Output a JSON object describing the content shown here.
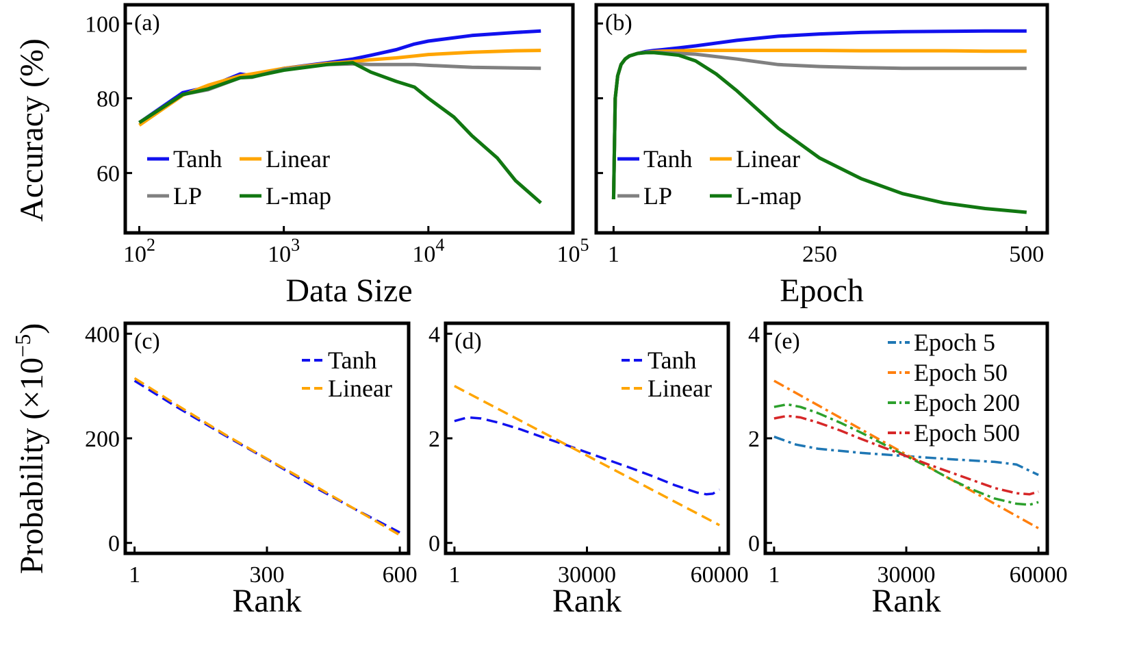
{
  "chart_data": [
    {
      "panel": "(a)",
      "type": "line",
      "xscale": "log",
      "xlim": [
        80,
        100000
      ],
      "ylim": [
        44,
        105
      ],
      "xlabel": "Data Size",
      "ylabel": "Accuracy (%)",
      "xticks": [
        {
          "v": 100,
          "b": "10",
          "e": "2"
        },
        {
          "v": 1000,
          "b": "10",
          "e": "3"
        },
        {
          "v": 10000,
          "b": "10",
          "e": "4"
        },
        {
          "v": 100000,
          "b": "10",
          "e": "5"
        }
      ],
      "yticks": [
        {
          "v": 60,
          "t": "60"
        },
        {
          "v": 80,
          "t": "80"
        },
        {
          "v": 100,
          "t": "100"
        }
      ],
      "legend": {
        "placement": "lower-left",
        "columns": 2
      },
      "series": [
        {
          "name": "Tanh",
          "color": "#1111ee",
          "dash": "solid",
          "x": [
            100,
            200,
            300,
            500,
            600,
            1000,
            2000,
            3000,
            4000,
            6000,
            8000,
            10000,
            20000,
            40000,
            60000
          ],
          "y": [
            73.5,
            81.5,
            83.0,
            86.5,
            86.0,
            88.0,
            89.5,
            90.5,
            91.5,
            93.0,
            94.5,
            95.3,
            96.8,
            97.6,
            98.0
          ]
        },
        {
          "name": "Linear",
          "color": "#ffa500",
          "dash": "solid",
          "x": [
            100,
            200,
            300,
            500,
            600,
            1000,
            2000,
            3000,
            4000,
            6000,
            8000,
            10000,
            20000,
            40000,
            60000
          ],
          "y": [
            72.8,
            80.8,
            83.5,
            86.0,
            86.5,
            88.0,
            89.3,
            89.8,
            90.3,
            90.8,
            91.3,
            91.7,
            92.3,
            92.7,
            92.8
          ]
        },
        {
          "name": "LP",
          "color": "#808080",
          "dash": "solid",
          "x": [
            100,
            200,
            300,
            500,
            600,
            1000,
            2000,
            3000,
            4000,
            6000,
            8000,
            10000,
            20000,
            40000,
            60000
          ],
          "y": [
            73.5,
            81.0,
            82.3,
            85.5,
            85.6,
            87.8,
            89.0,
            89.2,
            89.0,
            89.0,
            89.0,
            88.8,
            88.3,
            88.1,
            88.0
          ]
        },
        {
          "name": "L-map",
          "color": "#117711",
          "dash": "solid",
          "x": [
            100,
            200,
            300,
            500,
            600,
            1000,
            2000,
            3000,
            4000,
            6000,
            8000,
            10000,
            15000,
            20000,
            30000,
            40000,
            60000
          ],
          "y": [
            73.5,
            81.0,
            82.5,
            85.5,
            85.7,
            87.5,
            89.0,
            89.5,
            87.0,
            84.5,
            83.0,
            80.0,
            75.0,
            70.0,
            64.0,
            58.0,
            52.0
          ]
        }
      ]
    },
    {
      "panel": "(b)",
      "type": "line",
      "xlim": [
        -20,
        525
      ],
      "ylim": [
        44,
        105
      ],
      "xlabel": "Epoch",
      "ylabel": "",
      "xticks": [
        {
          "v": 1,
          "t": "1"
        },
        {
          "v": 250,
          "t": "250"
        },
        {
          "v": 500,
          "t": "500"
        }
      ],
      "yticks": [
        {
          "v": 60,
          "t": ""
        },
        {
          "v": 80,
          "t": ""
        },
        {
          "v": 100,
          "t": ""
        }
      ],
      "legend": {
        "placement": "lower-left",
        "columns": 2
      },
      "series": [
        {
          "name": "Tanh",
          "color": "#1111ee",
          "dash": "solid",
          "x": [
            1,
            3,
            6,
            10,
            15,
            20,
            30,
            40,
            50,
            60,
            80,
            100,
            150,
            200,
            250,
            300,
            350,
            400,
            450,
            500
          ],
          "y": [
            53,
            80,
            86,
            89,
            90.5,
            91.3,
            92.0,
            92.5,
            92.8,
            93.0,
            93.5,
            94.0,
            95.5,
            96.6,
            97.2,
            97.6,
            97.8,
            97.9,
            98.0,
            98.0
          ]
        },
        {
          "name": "Linear",
          "color": "#ffa500",
          "dash": "solid",
          "x": [
            1,
            3,
            6,
            10,
            15,
            20,
            30,
            40,
            50,
            60,
            80,
            100,
            150,
            200,
            250,
            300,
            350,
            400,
            450,
            500
          ],
          "y": [
            53,
            80,
            86,
            89,
            90.5,
            91.3,
            92.0,
            92.3,
            92.5,
            92.6,
            92.7,
            92.8,
            92.8,
            92.8,
            92.8,
            92.7,
            92.7,
            92.7,
            92.6,
            92.6
          ]
        },
        {
          "name": "LP",
          "color": "#808080",
          "dash": "solid",
          "x": [
            1,
            3,
            6,
            10,
            15,
            20,
            30,
            40,
            50,
            60,
            80,
            100,
            150,
            200,
            250,
            300,
            350,
            400,
            450,
            500
          ],
          "y": [
            53,
            80,
            86,
            89,
            90.5,
            91.3,
            92.0,
            92.3,
            92.3,
            92.2,
            92.0,
            91.8,
            90.5,
            89.0,
            88.5,
            88.2,
            88.0,
            88.0,
            88.0,
            88.0
          ]
        },
        {
          "name": "L-map",
          "color": "#117711",
          "dash": "solid",
          "x": [
            1,
            3,
            6,
            10,
            15,
            20,
            30,
            40,
            50,
            60,
            80,
            100,
            125,
            150,
            175,
            200,
            250,
            300,
            350,
            400,
            450,
            500
          ],
          "y": [
            53,
            80,
            86,
            89,
            90.5,
            91.3,
            92.0,
            92.2,
            92.2,
            92.0,
            91.5,
            90.0,
            86.5,
            82.0,
            77.0,
            72.0,
            64.0,
            58.5,
            54.5,
            52.0,
            50.5,
            49.5
          ]
        }
      ]
    },
    {
      "panel": "(c)",
      "type": "line",
      "xlim": [
        -20,
        620
      ],
      "ylim": [
        -20,
        420
      ],
      "xlabel": "Rank",
      "ylabel": "",
      "xticks": [
        {
          "v": 1,
          "t": "1"
        },
        {
          "v": 300,
          "t": "300"
        },
        {
          "v": 600,
          "t": "600"
        }
      ],
      "yticks": [
        {
          "v": 0,
          "t": "0"
        },
        {
          "v": 200,
          "t": "200"
        },
        {
          "v": 400,
          "t": "400"
        }
      ],
      "legend": {
        "placement": "top-right",
        "columns": 1
      },
      "series": [
        {
          "name": "Tanh",
          "color": "#1111ee",
          "dash": "dashed",
          "x": [
            1,
            100,
            200,
            300,
            400,
            500,
            600
          ],
          "y": [
            310,
            258,
            208,
            160,
            110,
            64,
            20
          ]
        },
        {
          "name": "Linear",
          "color": "#ffa500",
          "dash": "dashed",
          "x": [
            1,
            100,
            200,
            300,
            400,
            500,
            600
          ],
          "y": [
            315,
            262,
            210,
            161,
            113,
            64,
            15
          ]
        }
      ]
    },
    {
      "panel": "(d)",
      "type": "line",
      "xlim": [
        -2000,
        62000
      ],
      "ylim": [
        -0.2,
        4.2
      ],
      "xlabel": "Rank",
      "ylabel": "",
      "xticks": [
        {
          "v": 1,
          "t": "1"
        },
        {
          "v": 30000,
          "t": "30000"
        },
        {
          "v": 60000,
          "t": "60000"
        }
      ],
      "yticks": [
        {
          "v": 0,
          "t": "0"
        },
        {
          "v": 2,
          "t": "2"
        },
        {
          "v": 4,
          "t": "4"
        }
      ],
      "legend": {
        "placement": "top-right",
        "columns": 1
      },
      "series": [
        {
          "name": "Tanh",
          "color": "#1111ee",
          "dash": "dashed",
          "x": [
            1,
            3000,
            6000,
            10000,
            15000,
            20000,
            25000,
            30000,
            35000,
            40000,
            45000,
            50000,
            55000,
            57000,
            58500,
            60000
          ],
          "y": [
            2.33,
            2.4,
            2.38,
            2.3,
            2.17,
            2.02,
            1.88,
            1.73,
            1.58,
            1.43,
            1.27,
            1.1,
            0.96,
            0.93,
            0.94,
            1.02
          ]
        },
        {
          "name": "Linear",
          "color": "#ffa500",
          "dash": "dashed",
          "x": [
            1,
            60000
          ],
          "y": [
            3.0,
            0.34
          ]
        }
      ]
    },
    {
      "panel": "(e)",
      "type": "line",
      "xlim": [
        -2000,
        62000
      ],
      "ylim": [
        -0.2,
        4.2
      ],
      "xlabel": "Rank",
      "ylabel": "",
      "xticks": [
        {
          "v": 1,
          "t": "1"
        },
        {
          "v": 30000,
          "t": "30000"
        },
        {
          "v": 60000,
          "t": "60000"
        }
      ],
      "yticks": [
        {
          "v": 0,
          "t": "0"
        },
        {
          "v": 2,
          "t": "2"
        },
        {
          "v": 4,
          "t": "4"
        }
      ],
      "legend": {
        "placement": "top-right",
        "columns": 1
      },
      "series": [
        {
          "name": "Epoch 5",
          "color": "#1f77b4",
          "dash": "dashdot",
          "x": [
            1,
            5000,
            10000,
            20000,
            30000,
            40000,
            50000,
            55000,
            60000
          ],
          "y": [
            2.03,
            1.88,
            1.8,
            1.72,
            1.66,
            1.6,
            1.55,
            1.5,
            1.3
          ]
        },
        {
          "name": "Epoch 50",
          "color": "#ff7f0e",
          "dash": "dashdot",
          "x": [
            1,
            60000
          ],
          "y": [
            3.1,
            0.28
          ]
        },
        {
          "name": "Epoch 200",
          "color": "#2ca02c",
          "dash": "dashdot",
          "x": [
            1,
            3000,
            6000,
            10000,
            15000,
            20000,
            25000,
            30000,
            35000,
            40000,
            45000,
            50000,
            55000,
            58000,
            60000
          ],
          "y": [
            2.6,
            2.65,
            2.6,
            2.48,
            2.3,
            2.1,
            1.88,
            1.66,
            1.45,
            1.22,
            1.02,
            0.85,
            0.75,
            0.73,
            0.78
          ]
        },
        {
          "name": "Epoch 500",
          "color": "#d62728",
          "dash": "dashdot",
          "x": [
            1,
            3000,
            6000,
            10000,
            15000,
            20000,
            25000,
            30000,
            35000,
            40000,
            45000,
            50000,
            55000,
            58000,
            60000
          ],
          "y": [
            2.38,
            2.43,
            2.4,
            2.3,
            2.15,
            1.98,
            1.82,
            1.66,
            1.5,
            1.35,
            1.2,
            1.05,
            0.95,
            0.93,
            0.98
          ]
        }
      ]
    }
  ],
  "shared_labels": {
    "ylabel_bottom": "Probability (×10",
    "ylabel_bottom_exp": "−5",
    "ylabel_bottom_close": ")"
  }
}
